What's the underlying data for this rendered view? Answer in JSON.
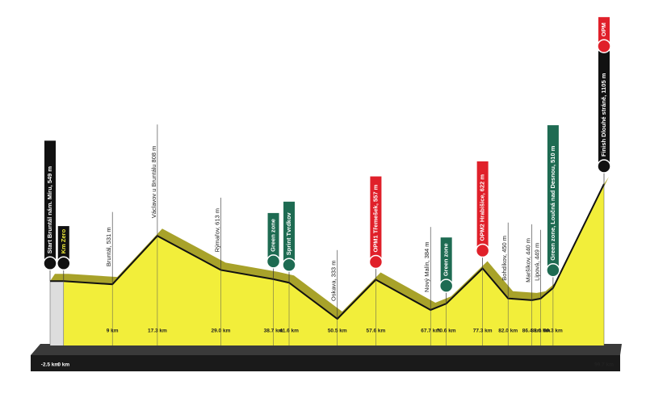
{
  "chart_data": {
    "type": "profile",
    "x": [
      -2.5,
      0,
      9,
      17.3,
      29.0,
      38.7,
      41.6,
      50.5,
      57.6,
      67.7,
      70.6,
      77.3,
      82.0,
      86.4,
      88.0,
      90.3,
      99.7
    ],
    "x_labels": [
      "-2.5 km",
      "0 km",
      "9 km",
      "17.3 km",
      "29.0 km",
      "38.7 km",
      "41.6 km",
      "50.5 km",
      "57.6 km",
      "67.7 km",
      "70.6 km",
      "77.3 km",
      "82.0 km",
      "86.4 km",
      "88.0 km",
      "90.3 km",
      "99.7 km"
    ],
    "values": [
      549,
      549,
      531,
      808,
      613,
      560,
      540,
      333,
      557,
      384,
      420,
      622,
      450,
      440,
      449,
      510,
      1105
    ],
    "labels": [
      "Start Bruntál nám. Míru, 549 m",
      "Km Zero",
      "Bruntál, 531 m",
      "Václavov u Bruntálu 808 m",
      "Rýmařov, 613 m",
      "Green zone",
      "Sprint Tvrdkov",
      "Oskava, 333 m",
      "OPM1 Třemešek, 557 m",
      "Nový Malín, 384 m",
      "Green zone",
      "OPM2 Hrabišice, 622 m",
      "Bohdíkov, 450 m",
      "Maršíkov, 440 m",
      "Lipová, 449 m",
      "Green zone, Loučná nad Desnou, 510 m",
      "Finish Dlouhé stráně, 1105 m"
    ],
    "flag_colors": [
      "#111111",
      "#111111",
      null,
      null,
      null,
      "#1e6b52",
      "#1e6b52",
      null,
      "#e0202a",
      null,
      "#1e6b52",
      "#e0202a",
      null,
      null,
      null,
      "#1e6b52",
      "#111111"
    ],
    "top_flag": "OPM",
    "top_flag_color": "#e0202a",
    "color": "#f2ee3a",
    "edge_color": "#a8a22a"
  }
}
